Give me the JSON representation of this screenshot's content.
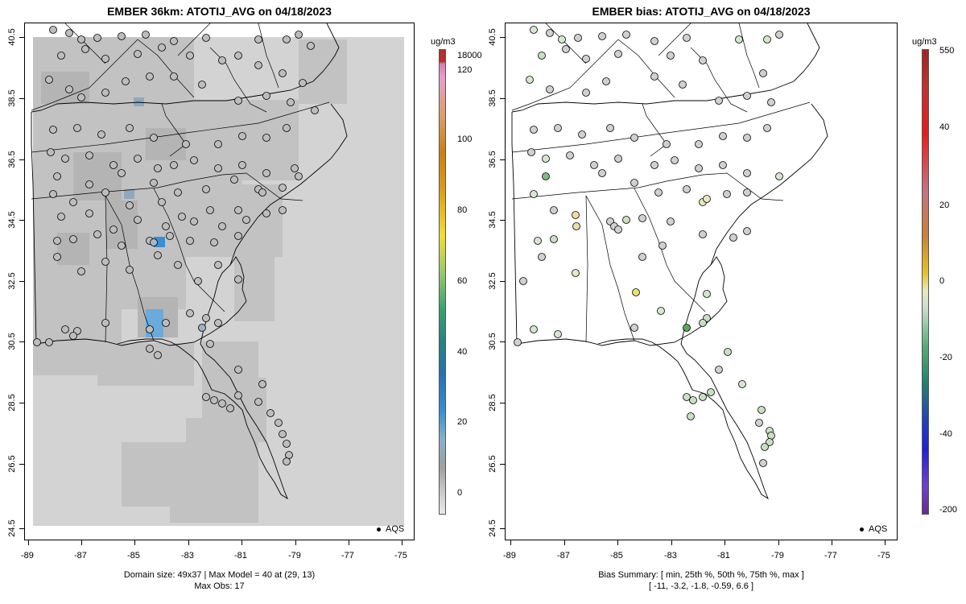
{
  "panels": [
    {
      "title": "EMBER 36km: ATOTIJ_AVG on 04/18/2023",
      "caption_line1": "Domain size: 49x37 | Max Model = 40 at (29, 13)",
      "caption_line2": "Max Obs: 17",
      "legend_label": "AQS",
      "colorbar_unit": "ug/m3",
      "colorbar_labels": [
        "18000",
        "120",
        "100",
        "80",
        "60",
        "40",
        "20",
        "0"
      ]
    },
    {
      "title": "EMBER bias: ATOTIJ_AVG on 04/18/2023",
      "caption_line1": "Bias Summary: [ min, 25th %, 50th %, 75th %, max ]",
      "caption_line2": "[ -11,   -3.2,   -1.8,   -0.59,   6.6 ]",
      "legend_label": "AQS",
      "colorbar_unit": "ug/m3",
      "colorbar_labels": [
        "550",
        "40",
        "20",
        "0",
        "-20",
        "-40",
        "-200"
      ]
    }
  ],
  "axes": {
    "x_ticks": [
      "-89",
      "-87",
      "-85",
      "-83",
      "-81",
      "-79",
      "-77",
      "-75"
    ],
    "y_ticks": [
      "40.5",
      "38.5",
      "36.5",
      "34.5",
      "32.5",
      "30.5",
      "28.5",
      "26.5",
      "24.5"
    ]
  },
  "colors": {
    "grid_background": "#d3d3d3",
    "grid_land": "#c2c2c2",
    "model_hot": "#3a8fd0",
    "obs_fill": "#bdbdbd",
    "bias_fill": "#d6e6cf"
  }
}
